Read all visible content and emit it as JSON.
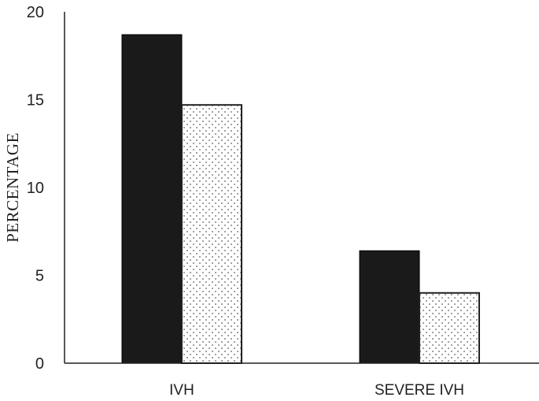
{
  "chart_data": {
    "type": "bar",
    "title": "",
    "xlabel": "",
    "ylabel": "PERCENTAGE",
    "categories": [
      "IVH",
      "SEVERE IVH"
    ],
    "series": [
      {
        "values": [
          18.7,
          6.4
        ],
        "fill": "solid",
        "color": "#1a1a1a"
      },
      {
        "values": [
          14.7,
          4.0
        ],
        "fill": "dotted",
        "color": "#ffffff"
      }
    ],
    "ylim": [
      0,
      20
    ],
    "yticks": [
      "0",
      "5",
      "10",
      "15",
      "20"
    ],
    "grid": false,
    "legend": "none"
  }
}
